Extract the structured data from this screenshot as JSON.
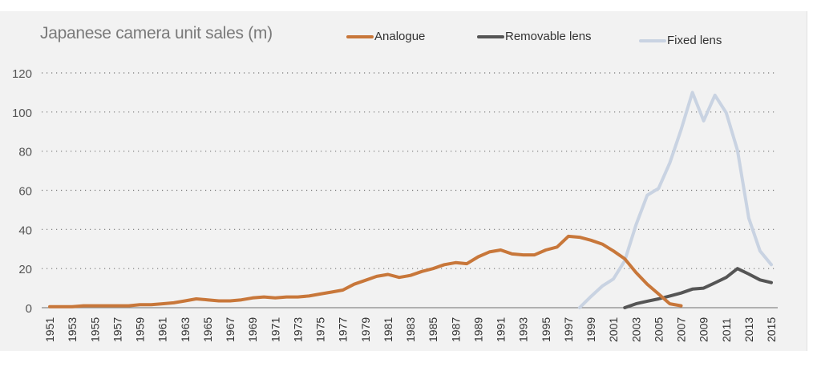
{
  "chart_data": {
    "type": "line",
    "title": "Japanese camera unit sales (m)",
    "xlabel": "",
    "ylabel": "",
    "ylim": [
      0,
      120
    ],
    "yticks": [
      0,
      20,
      40,
      60,
      80,
      100,
      120
    ],
    "grid": true,
    "legend_position": "top",
    "x": [
      1951,
      1952,
      1953,
      1954,
      1955,
      1956,
      1957,
      1958,
      1959,
      1960,
      1961,
      1962,
      1963,
      1964,
      1965,
      1966,
      1967,
      1968,
      1969,
      1970,
      1971,
      1972,
      1973,
      1974,
      1975,
      1976,
      1977,
      1978,
      1979,
      1980,
      1981,
      1982,
      1983,
      1984,
      1985,
      1986,
      1987,
      1988,
      1989,
      1990,
      1991,
      1992,
      1993,
      1994,
      1995,
      1996,
      1997,
      1998,
      1999,
      2000,
      2001,
      2002,
      2003,
      2004,
      2005,
      2006,
      2007,
      2008,
      2009,
      2010,
      2011,
      2012,
      2013,
      2014,
      2015
    ],
    "xtick_labels": [
      "1951",
      "1953",
      "1955",
      "1957",
      "1959",
      "1961",
      "1963",
      "1965",
      "1967",
      "1969",
      "1971",
      "1973",
      "1975",
      "1977",
      "1979",
      "1981",
      "1983",
      "1985",
      "1987",
      "1989",
      "1991",
      "1993",
      "1995",
      "1997",
      "1999",
      "2001",
      "2003",
      "2005",
      "2007",
      "2009",
      "2011",
      "2013",
      "2015"
    ],
    "series": [
      {
        "name": "Analogue",
        "color": "#c8773a",
        "values": [
          0.5,
          0.5,
          0.5,
          1,
          1,
          1,
          1,
          1,
          1.5,
          1.5,
          2,
          2.5,
          3.5,
          4.5,
          4,
          3.5,
          3.5,
          4,
          5,
          5.5,
          5,
          5.5,
          5.5,
          6,
          7,
          8,
          9,
          12,
          14,
          16,
          17,
          15.5,
          16.5,
          18.5,
          20,
          22,
          23,
          22.5,
          26,
          28.5,
          29.5,
          27.5,
          27,
          27,
          29.5,
          31,
          36.5,
          36,
          34.5,
          32.5,
          29,
          25,
          18,
          12,
          7,
          2,
          1,
          null,
          null,
          null,
          null,
          null,
          null,
          null,
          null
        ]
      },
      {
        "name": "Removable lens",
        "color": "#555555",
        "values": [
          null,
          null,
          null,
          null,
          null,
          null,
          null,
          null,
          null,
          null,
          null,
          null,
          null,
          null,
          null,
          null,
          null,
          null,
          null,
          null,
          null,
          null,
          null,
          null,
          null,
          null,
          null,
          null,
          null,
          null,
          null,
          null,
          null,
          null,
          null,
          null,
          null,
          null,
          null,
          null,
          null,
          null,
          null,
          null,
          null,
          null,
          null,
          null,
          null,
          null,
          null,
          0,
          2,
          3.3,
          4.5,
          6,
          7.5,
          9.5,
          10,
          12.7,
          15.5,
          20,
          17.2,
          14.2,
          12.8
        ]
      },
      {
        "name": "Fixed lens",
        "color": "#c9d3e2",
        "values": [
          null,
          null,
          null,
          null,
          null,
          null,
          null,
          null,
          null,
          null,
          null,
          null,
          null,
          null,
          null,
          null,
          null,
          null,
          null,
          null,
          null,
          null,
          null,
          null,
          null,
          null,
          null,
          null,
          null,
          null,
          null,
          null,
          null,
          null,
          null,
          null,
          null,
          null,
          null,
          null,
          null,
          null,
          null,
          null,
          null,
          null,
          null,
          0,
          5.7,
          11,
          14.7,
          24,
          42.4,
          57.5,
          61,
          74,
          91,
          110,
          95.5,
          108.6,
          99.6,
          80.5,
          45.8,
          29,
          22
        ]
      }
    ]
  }
}
